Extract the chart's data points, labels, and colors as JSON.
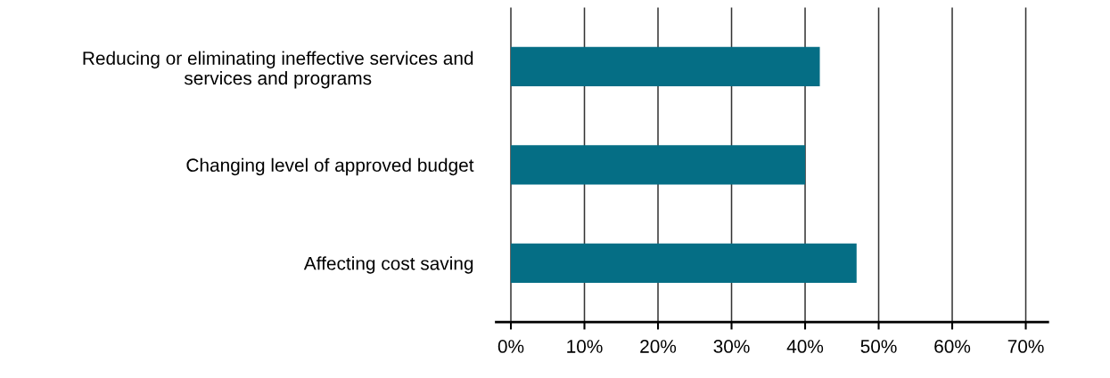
{
  "chart_data": {
    "type": "bar",
    "orientation": "horizontal",
    "categories": [
      "Reducing or eliminating ineffective services and\nservices and programs",
      "Changing level of approved budget",
      "Affecting cost saving"
    ],
    "values": [
      42,
      40,
      47
    ],
    "color": "#056e85",
    "xlim": [
      -2,
      73
    ],
    "xticks": [
      {
        "value": 0,
        "label": "0%"
      },
      {
        "value": 10,
        "label": "10%"
      },
      {
        "value": 20,
        "label": "20%"
      },
      {
        "value": 30,
        "label": "30%"
      },
      {
        "value": 40,
        "label": "40%"
      },
      {
        "value": 50,
        "label": "50%"
      },
      {
        "value": 60,
        "label": "60%"
      },
      {
        "value": 70,
        "label": "70%"
      }
    ],
    "grid": "x"
  }
}
